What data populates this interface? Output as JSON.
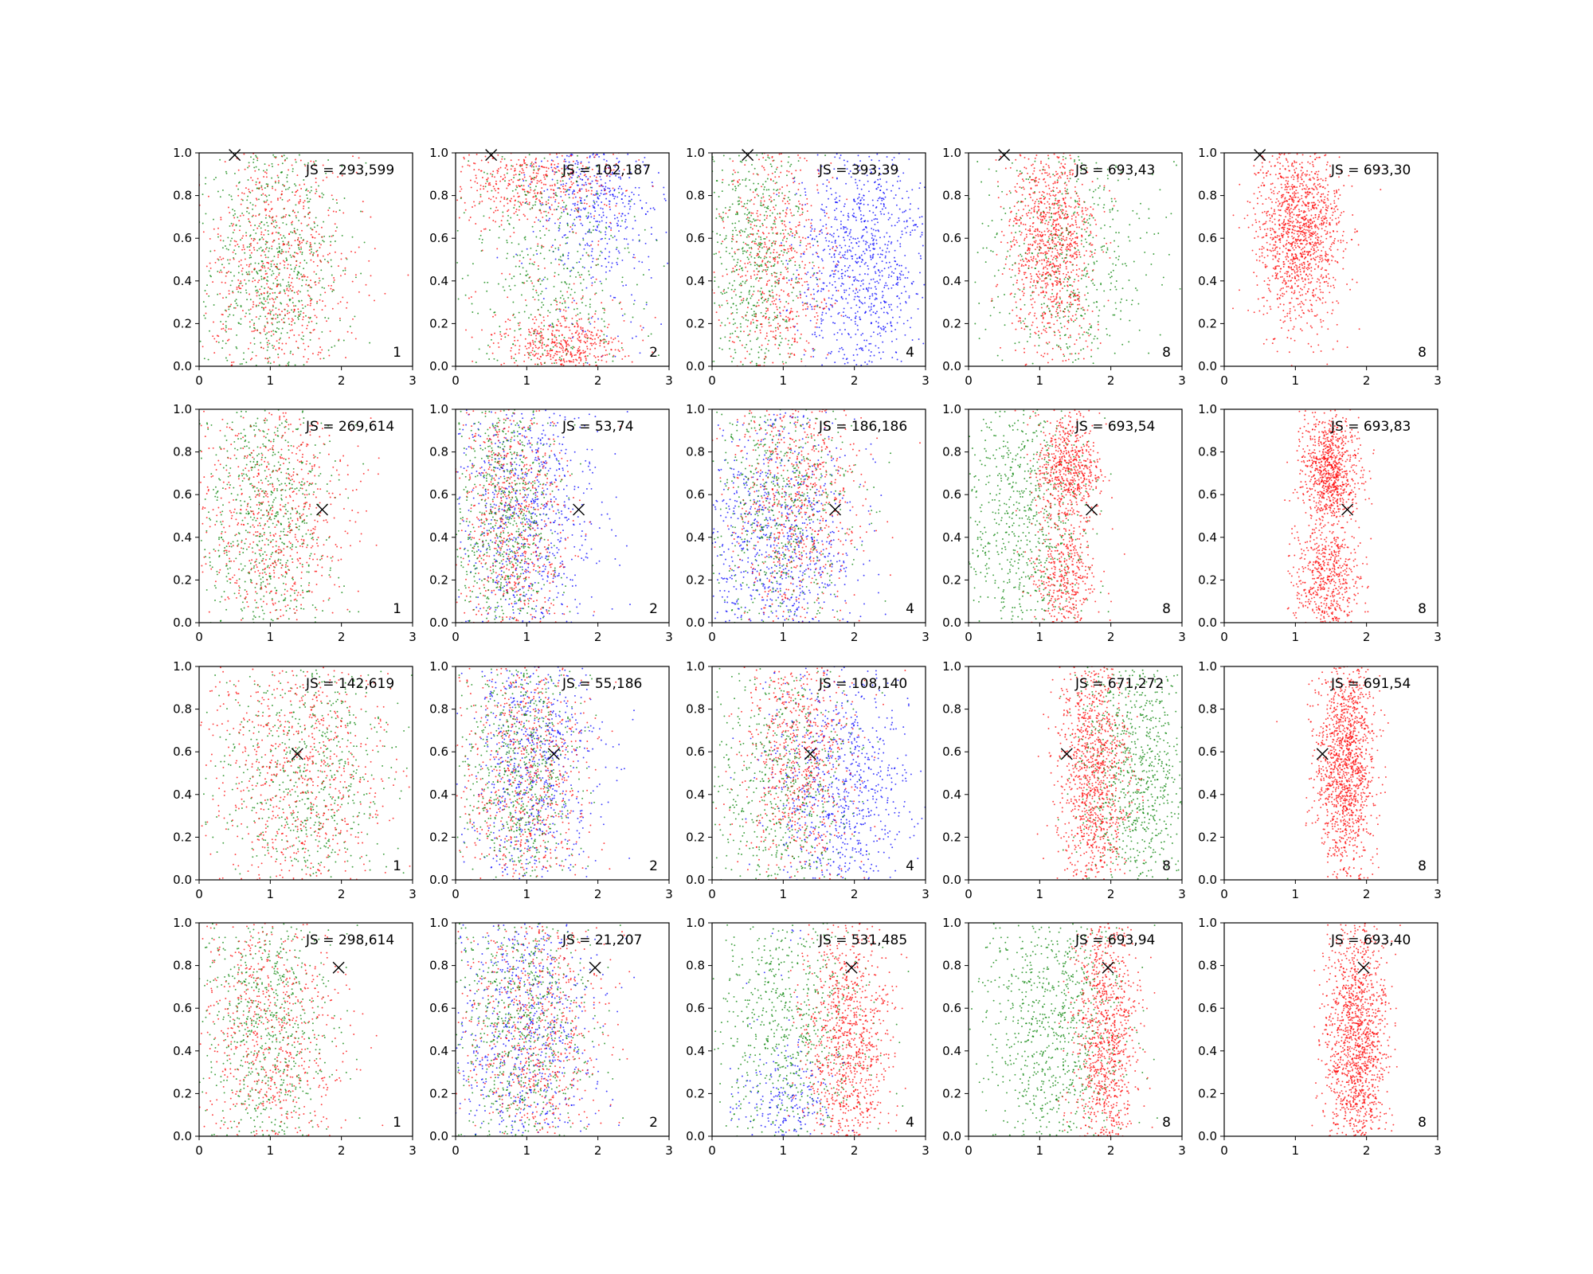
{
  "chart_data": {
    "type": "scatter",
    "layout": {
      "rows": 4,
      "cols": 5
    },
    "xlim": [
      0,
      3
    ],
    "ylim": [
      0,
      1
    ],
    "xticks": [
      "0",
      "1",
      "2",
      "3"
    ],
    "yticks": [
      "0.0",
      "0.2",
      "0.4",
      "0.6",
      "0.8",
      "1.0"
    ],
    "grid": false,
    "colors": {
      "red": "#ff0000",
      "green": "#008000",
      "blue": "#0000ff",
      "marker": "#000000"
    },
    "markers": [
      {
        "row": 1,
        "x": 0.5,
        "y": 0.99
      },
      {
        "row": 2,
        "x": 1.73,
        "y": 0.53
      },
      {
        "row": 3,
        "x": 1.38,
        "y": 0.59
      },
      {
        "row": 4,
        "x": 1.96,
        "y": 0.79
      }
    ],
    "panels": [
      {
        "row": 1,
        "col": 1,
        "js_label": "JS = 293,599",
        "k_label": "1",
        "clusters": [
          {
            "color": "green",
            "mx": 1.0,
            "sx": 0.5,
            "my": 0.5,
            "sy": 0.35,
            "n": 650
          },
          {
            "color": "red",
            "mx": 1.1,
            "sx": 0.55,
            "my": 0.45,
            "sy": 0.35,
            "n": 650
          }
        ]
      },
      {
        "row": 1,
        "col": 2,
        "js_label": "JS = 102,187",
        "k_label": "2",
        "clusters": [
          {
            "color": "blue",
            "mx": 2.0,
            "sx": 0.45,
            "my": 0.8,
            "sy": 0.18,
            "n": 450
          },
          {
            "color": "red",
            "mx": 1.5,
            "sx": 0.45,
            "my": 0.1,
            "sy": 0.08,
            "n": 450
          },
          {
            "color": "red",
            "mx": 1.1,
            "sx": 0.6,
            "my": 0.88,
            "sy": 0.1,
            "n": 450
          },
          {
            "color": "green",
            "mx": 1.3,
            "sx": 0.6,
            "my": 0.5,
            "sy": 0.35,
            "n": 450
          }
        ]
      },
      {
        "row": 1,
        "col": 3,
        "js_label": "JS = 393,39",
        "k_label": "4",
        "clusters": [
          {
            "color": "blue",
            "mx": 2.1,
            "sx": 0.45,
            "my": 0.5,
            "sy": 0.28,
            "n": 900
          },
          {
            "color": "green",
            "mx": 0.6,
            "sx": 0.35,
            "my": 0.5,
            "sy": 0.32,
            "n": 550
          },
          {
            "color": "red",
            "mx": 0.9,
            "sx": 0.4,
            "my": 0.5,
            "sy": 0.32,
            "n": 550
          }
        ]
      },
      {
        "row": 1,
        "col": 4,
        "js_label": "JS = 693,43",
        "k_label": "8",
        "clusters": [
          {
            "color": "red",
            "mx": 1.15,
            "sx": 0.3,
            "my": 0.6,
            "sy": 0.25,
            "n": 1000
          },
          {
            "color": "green",
            "mx": 1.4,
            "sx": 0.6,
            "my": 0.5,
            "sy": 0.33,
            "n": 500
          }
        ]
      },
      {
        "row": 1,
        "col": 5,
        "js_label": "JS = 693,30",
        "k_label": "8",
        "clusters": [
          {
            "color": "red",
            "mx": 1.05,
            "sx": 0.3,
            "my": 0.65,
            "sy": 0.22,
            "n": 1300
          }
        ]
      },
      {
        "row": 2,
        "col": 1,
        "js_label": "JS = 269,614",
        "k_label": "1",
        "clusters": [
          {
            "color": "green",
            "mx": 0.95,
            "sx": 0.45,
            "my": 0.5,
            "sy": 0.33,
            "n": 650
          },
          {
            "color": "red",
            "mx": 1.05,
            "sx": 0.55,
            "my": 0.5,
            "sy": 0.33,
            "n": 650
          }
        ]
      },
      {
        "row": 2,
        "col": 2,
        "js_label": "JS = 53,74",
        "k_label": "2",
        "clusters": [
          {
            "color": "blue",
            "mx": 1.0,
            "sx": 0.5,
            "my": 0.5,
            "sy": 0.33,
            "n": 700
          },
          {
            "color": "red",
            "mx": 0.8,
            "sx": 0.4,
            "my": 0.5,
            "sy": 0.33,
            "n": 650
          },
          {
            "color": "green",
            "mx": 0.7,
            "sx": 0.35,
            "my": 0.5,
            "sy": 0.33,
            "n": 650
          }
        ]
      },
      {
        "row": 2,
        "col": 3,
        "js_label": "JS = 186,186",
        "k_label": "4",
        "clusters": [
          {
            "color": "blue",
            "mx": 0.9,
            "sx": 0.55,
            "my": 0.35,
            "sy": 0.3,
            "n": 800
          },
          {
            "color": "red",
            "mx": 1.2,
            "sx": 0.45,
            "my": 0.6,
            "sy": 0.3,
            "n": 650
          },
          {
            "color": "green",
            "mx": 1.0,
            "sx": 0.5,
            "my": 0.55,
            "sy": 0.33,
            "n": 550
          }
        ]
      },
      {
        "row": 2,
        "col": 4,
        "js_label": "JS = 693,54",
        "k_label": "8",
        "clusters": [
          {
            "color": "green",
            "mx": 0.8,
            "sx": 0.45,
            "my": 0.5,
            "sy": 0.33,
            "n": 700
          },
          {
            "color": "red",
            "mx": 1.4,
            "sx": 0.22,
            "my": 0.72,
            "sy": 0.13,
            "n": 600
          },
          {
            "color": "red",
            "mx": 1.35,
            "sx": 0.22,
            "my": 0.2,
            "sy": 0.15,
            "n": 400
          }
        ]
      },
      {
        "row": 2,
        "col": 5,
        "js_label": "JS = 693,83",
        "k_label": "8",
        "clusters": [
          {
            "color": "red",
            "mx": 1.5,
            "sx": 0.2,
            "my": 0.72,
            "sy": 0.12,
            "n": 800
          },
          {
            "color": "red",
            "mx": 1.45,
            "sx": 0.22,
            "my": 0.2,
            "sy": 0.15,
            "n": 600
          }
        ]
      },
      {
        "row": 3,
        "col": 1,
        "js_label": "JS = 142,619",
        "k_label": "1",
        "clusters": [
          {
            "color": "green",
            "mx": 1.5,
            "sx": 0.6,
            "my": 0.5,
            "sy": 0.33,
            "n": 600
          },
          {
            "color": "red",
            "mx": 1.4,
            "sx": 0.65,
            "my": 0.5,
            "sy": 0.33,
            "n": 700
          }
        ]
      },
      {
        "row": 3,
        "col": 2,
        "js_label": "JS = 55,186",
        "k_label": "2",
        "clusters": [
          {
            "color": "blue",
            "mx": 1.15,
            "sx": 0.45,
            "my": 0.55,
            "sy": 0.33,
            "n": 650
          },
          {
            "color": "red",
            "mx": 1.0,
            "sx": 0.45,
            "my": 0.5,
            "sy": 0.33,
            "n": 650
          },
          {
            "color": "green",
            "mx": 0.9,
            "sx": 0.4,
            "my": 0.5,
            "sy": 0.33,
            "n": 600
          }
        ]
      },
      {
        "row": 3,
        "col": 3,
        "js_label": "JS = 108,140",
        "k_label": "4",
        "clusters": [
          {
            "color": "blue",
            "mx": 1.8,
            "sx": 0.5,
            "my": 0.4,
            "sy": 0.3,
            "n": 750
          },
          {
            "color": "red",
            "mx": 1.2,
            "sx": 0.4,
            "my": 0.6,
            "sy": 0.3,
            "n": 650
          },
          {
            "color": "green",
            "mx": 1.0,
            "sx": 0.5,
            "my": 0.45,
            "sy": 0.33,
            "n": 550
          }
        ]
      },
      {
        "row": 3,
        "col": 4,
        "js_label": "JS = 671,272",
        "k_label": "8",
        "clusters": [
          {
            "color": "green",
            "mx": 2.35,
            "sx": 0.4,
            "my": 0.5,
            "sy": 0.33,
            "n": 800
          },
          {
            "color": "red",
            "mx": 1.75,
            "sx": 0.25,
            "my": 0.5,
            "sy": 0.3,
            "n": 1000
          }
        ]
      },
      {
        "row": 3,
        "col": 5,
        "js_label": "JS = 691,54",
        "k_label": "8",
        "clusters": [
          {
            "color": "red",
            "mx": 1.7,
            "sx": 0.2,
            "my": 0.55,
            "sy": 0.25,
            "n": 1300
          }
        ]
      },
      {
        "row": 4,
        "col": 1,
        "js_label": "JS = 298,614",
        "k_label": "1",
        "clusters": [
          {
            "color": "green",
            "mx": 0.95,
            "sx": 0.45,
            "my": 0.5,
            "sy": 0.33,
            "n": 650
          },
          {
            "color": "red",
            "mx": 1.0,
            "sx": 0.55,
            "my": 0.5,
            "sy": 0.33,
            "n": 650
          }
        ]
      },
      {
        "row": 4,
        "col": 2,
        "js_label": "JS = 21,207",
        "k_label": "2",
        "clusters": [
          {
            "color": "blue",
            "mx": 1.0,
            "sx": 0.5,
            "my": 0.5,
            "sy": 0.33,
            "n": 650
          },
          {
            "color": "red",
            "mx": 1.1,
            "sx": 0.5,
            "my": 0.5,
            "sy": 0.33,
            "n": 650
          },
          {
            "color": "green",
            "mx": 0.9,
            "sx": 0.5,
            "my": 0.5,
            "sy": 0.33,
            "n": 650
          }
        ]
      },
      {
        "row": 4,
        "col": 3,
        "js_label": "JS = 531,485",
        "k_label": "4",
        "clusters": [
          {
            "color": "green",
            "mx": 1.1,
            "sx": 0.55,
            "my": 0.55,
            "sy": 0.3,
            "n": 650
          },
          {
            "color": "red",
            "mx": 1.9,
            "sx": 0.3,
            "my": 0.45,
            "sy": 0.3,
            "n": 900
          },
          {
            "color": "blue",
            "mx": 1.0,
            "sx": 0.35,
            "my": 0.15,
            "sy": 0.12,
            "n": 200
          }
        ]
      },
      {
        "row": 4,
        "col": 4,
        "js_label": "JS = 693,94",
        "k_label": "8",
        "clusters": [
          {
            "color": "green",
            "mx": 1.2,
            "sx": 0.5,
            "my": 0.5,
            "sy": 0.33,
            "n": 800
          },
          {
            "color": "red",
            "mx": 1.95,
            "sx": 0.22,
            "my": 0.45,
            "sy": 0.3,
            "n": 900
          }
        ]
      },
      {
        "row": 4,
        "col": 5,
        "js_label": "JS = 693,40",
        "k_label": "8",
        "clusters": [
          {
            "color": "red",
            "mx": 1.85,
            "sx": 0.22,
            "my": 0.45,
            "sy": 0.3,
            "n": 1300
          }
        ]
      }
    ]
  }
}
